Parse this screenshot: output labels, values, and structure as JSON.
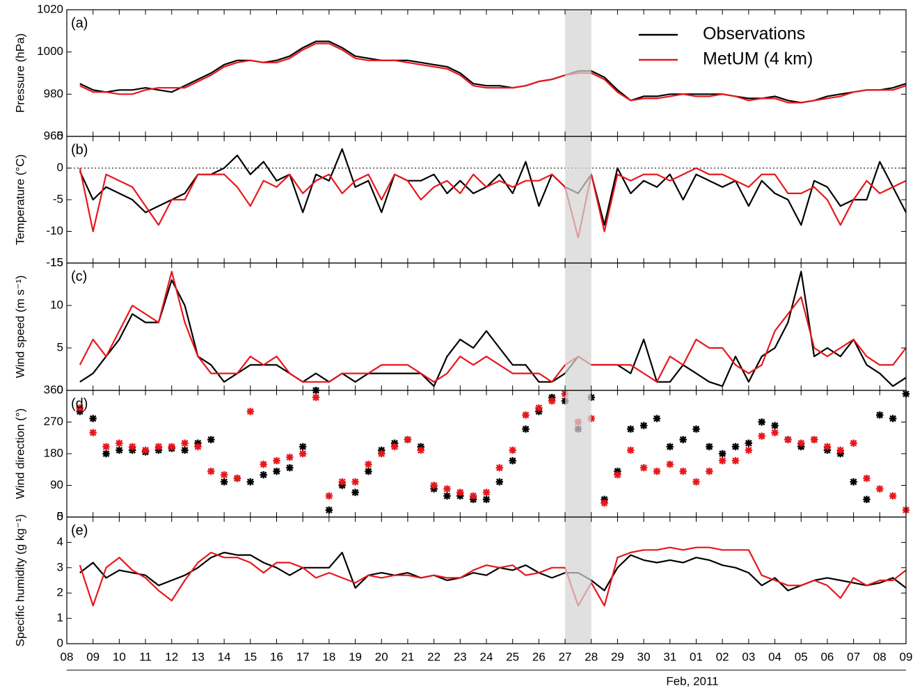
{
  "chart_data": [
    {
      "type": "line",
      "panel_label": "(a)",
      "ylabel": "Pressure (hPa)",
      "legend": "upper right",
      "shaded_span": [
        19,
        20
      ],
      "x": [
        0.5,
        1,
        1.5,
        2,
        2.5,
        3,
        3.5,
        4,
        4.5,
        5,
        5.5,
        6,
        6.5,
        7,
        7.5,
        8,
        8.5,
        9,
        9.5,
        10,
        10.5,
        11,
        11.5,
        12,
        12.5,
        13,
        13.5,
        14,
        14.5,
        15,
        15.5,
        16,
        16.5,
        17,
        17.5,
        18,
        18.5,
        19,
        19.5,
        20,
        20.5,
        21,
        21.5,
        22,
        22.5,
        23,
        23.5,
        24,
        24.5,
        25,
        25.5,
        26,
        26.5,
        27,
        27.5,
        28,
        28.5,
        29,
        29.5,
        30,
        30.5,
        31,
        31.5,
        32
      ],
      "xlim": [
        0,
        32
      ],
      "ylim": [
        960,
        1020
      ],
      "yticks": [
        960,
        980,
        1000,
        1020
      ],
      "series": [
        {
          "name": "Observations",
          "color": "#000000",
          "values": [
            985,
            982,
            981,
            982,
            982,
            983,
            982,
            981,
            984,
            987,
            990,
            994,
            996,
            996,
            995,
            996,
            998,
            1002,
            1005,
            1005,
            1002,
            998,
            997,
            996,
            996,
            996,
            995,
            994,
            993,
            990,
            985,
            984,
            984,
            983,
            984,
            986,
            987,
            989,
            991,
            991,
            988,
            982,
            977,
            979,
            979,
            980,
            980,
            980,
            980,
            980,
            979,
            978,
            978,
            979,
            977,
            976,
            977,
            979,
            980,
            981,
            982,
            982,
            983,
            985
          ]
        },
        {
          "name": "MetUM (4 km)",
          "color": "#e8161b",
          "values": [
            984,
            981,
            981,
            980,
            980,
            982,
            983,
            983,
            983,
            986,
            989,
            993,
            995,
            996,
            995,
            995,
            997,
            1001,
            1004,
            1004,
            1001,
            997,
            996,
            996,
            996,
            995,
            994,
            993,
            992,
            989,
            984,
            983,
            983,
            983,
            984,
            986,
            987,
            989,
            990,
            990,
            987,
            981,
            977,
            978,
            978,
            979,
            980,
            979,
            979,
            980,
            979,
            977,
            978,
            978,
            976,
            976,
            977,
            978,
            979,
            981,
            982,
            982,
            982,
            984
          ]
        }
      ]
    },
    {
      "type": "line",
      "panel_label": "(b)",
      "ylabel": "Temperature (°C)",
      "reference_line": 0,
      "x": [
        0.5,
        1,
        1.5,
        2,
        2.5,
        3,
        3.5,
        4,
        4.5,
        5,
        5.5,
        6,
        6.5,
        7,
        7.5,
        8,
        8.5,
        9,
        9.5,
        10,
        10.5,
        11,
        11.5,
        12,
        12.5,
        13,
        13.5,
        14,
        14.5,
        15,
        15.5,
        16,
        16.5,
        17,
        17.5,
        18,
        18.5,
        19,
        19.5,
        20,
        20.5,
        21,
        21.5,
        22,
        22.5,
        23,
        23.5,
        24,
        24.5,
        25,
        25.5,
        26,
        26.5,
        27,
        27.5,
        28,
        28.5,
        29,
        29.5,
        30,
        30.5,
        31,
        31.5,
        32
      ],
      "xlim": [
        0,
        32
      ],
      "ylim": [
        -15,
        5
      ],
      "yticks": [
        -15,
        -10,
        -5,
        0,
        5
      ],
      "series": [
        {
          "color": "#000000",
          "values": [
            -0.5,
            -5,
            -3,
            -4,
            -5,
            -7,
            -6,
            -5,
            -4,
            -1,
            -1,
            0,
            2,
            -1,
            1,
            -2,
            -1,
            -7,
            -1,
            -2,
            3,
            -3,
            -2,
            -7,
            -1,
            -2,
            -2,
            -1,
            -4,
            -2,
            -4,
            -3,
            -1,
            -4,
            1,
            -6,
            -1,
            -3,
            -4,
            -1,
            -9,
            0,
            -4,
            -2,
            -3,
            -1,
            -5,
            -1,
            -2,
            -3,
            -2,
            -6,
            -2,
            -4,
            -5,
            -9,
            -2,
            -3,
            -6,
            -5,
            -5,
            1,
            -3,
            -7
          ]
        },
        {
          "color": "#e8161b",
          "values": [
            0,
            -10,
            -1,
            -2,
            -3,
            -6,
            -9,
            -5,
            -5,
            -1,
            -1,
            -1,
            -3,
            -6,
            -2,
            -3,
            -1,
            -4,
            -2,
            -1,
            -4,
            -2,
            -1,
            -5,
            -1,
            -2,
            -5,
            -3,
            -2,
            -4,
            -1,
            -3,
            -2,
            -3,
            -2,
            -2,
            -1,
            -3,
            -11,
            -1,
            -10,
            -1,
            -2,
            -1,
            -1,
            -2,
            -1,
            0,
            -1,
            -1,
            -2,
            -3,
            -1,
            -1,
            -4,
            -4,
            -3,
            -5,
            -9,
            -5,
            -2,
            -4,
            -3,
            -2
          ]
        }
      ]
    },
    {
      "type": "line",
      "panel_label": "(c)",
      "ylabel": "Wind speed (m s⁻¹)",
      "x": [
        0.5,
        1,
        1.5,
        2,
        2.5,
        3,
        3.5,
        4,
        4.5,
        5,
        5.5,
        6,
        6.5,
        7,
        7.5,
        8,
        8.5,
        9,
        9.5,
        10,
        10.5,
        11,
        11.5,
        12,
        12.5,
        13,
        13.5,
        14,
        14.5,
        15,
        15.5,
        16,
        16.5,
        17,
        17.5,
        18,
        18.5,
        19,
        19.5,
        20,
        20.5,
        21,
        21.5,
        22,
        22.5,
        23,
        23.5,
        24,
        24.5,
        25,
        25.5,
        26,
        26.5,
        27,
        27.5,
        28,
        28.5,
        29,
        29.5,
        30,
        30.5,
        31,
        31.5,
        32
      ],
      "xlim": [
        0,
        32
      ],
      "ylim": [
        0,
        15
      ],
      "yticks": [
        0,
        5,
        10,
        15
      ],
      "series": [
        {
          "color": "#000000",
          "values": [
            1,
            2,
            4,
            6,
            9,
            8,
            8,
            13,
            10,
            4,
            3,
            1,
            2,
            3,
            3,
            3,
            2,
            1,
            2,
            1,
            2,
            1,
            2,
            2,
            2,
            2,
            2,
            0.5,
            4,
            6,
            5,
            7,
            5,
            3,
            3,
            1,
            1,
            2,
            4,
            3,
            3,
            3,
            2,
            6,
            1,
            1,
            3,
            2,
            1,
            0.5,
            4,
            1,
            4,
            5,
            8,
            14,
            4,
            5,
            4,
            6,
            3,
            2,
            0.5,
            1.5
          ]
        },
        {
          "color": "#e8161b",
          "values": [
            3,
            6,
            4,
            7,
            10,
            9,
            8,
            14,
            8,
            4,
            2,
            2,
            2,
            4,
            3,
            4,
            2,
            1,
            1,
            1,
            2,
            2,
            2,
            3,
            3,
            3,
            2,
            1,
            2,
            4,
            3,
            4,
            3,
            2,
            2,
            2,
            1,
            3,
            4,
            3,
            3,
            3,
            3,
            2,
            1,
            4,
            3,
            6,
            5,
            5,
            3,
            2,
            3,
            7,
            9,
            11,
            5,
            4,
            5,
            6,
            4,
            3,
            3,
            5
          ]
        }
      ]
    },
    {
      "type": "scatter",
      "panel_label": "(d)",
      "ylabel": "Wind direction (°)",
      "x": [
        0.5,
        1,
        1.5,
        2,
        2.5,
        3,
        3.5,
        4,
        4.5,
        5,
        5.5,
        6,
        6.5,
        7,
        7.5,
        8,
        8.5,
        9,
        9.5,
        10,
        10.5,
        11,
        11.5,
        12,
        12.5,
        13,
        13.5,
        14,
        14.5,
        15,
        15.5,
        16,
        16.5,
        17,
        17.5,
        18,
        18.5,
        19,
        19.5,
        20,
        20.5,
        21,
        21.5,
        22,
        22.5,
        23,
        23.5,
        24,
        24.5,
        25,
        25.5,
        26,
        26.5,
        27,
        27.5,
        28,
        28.5,
        29,
        29.5,
        30,
        30.5,
        31,
        31.5,
        32
      ],
      "xlim": [
        0,
        32
      ],
      "ylim": [
        0,
        360
      ],
      "yticks": [
        0,
        90,
        180,
        270,
        360
      ],
      "series": [
        {
          "color": "#000000",
          "values": [
            300,
            280,
            180,
            190,
            190,
            185,
            190,
            195,
            190,
            210,
            220,
            100,
            110,
            100,
            120,
            130,
            140,
            200,
            360,
            20,
            90,
            70,
            130,
            190,
            210,
            220,
            200,
            80,
            60,
            60,
            50,
            50,
            100,
            160,
            250,
            300,
            340,
            330,
            250,
            340,
            50,
            130,
            250,
            260,
            280,
            200,
            220,
            250,
            200,
            180,
            200,
            210,
            270,
            260,
            220,
            200,
            220,
            190,
            180,
            100,
            50,
            290,
            280,
            350
          ]
        },
        {
          "color": "#e8161b",
          "values": [
            310,
            240,
            200,
            210,
            200,
            190,
            200,
            200,
            210,
            200,
            130,
            120,
            110,
            300,
            150,
            160,
            170,
            180,
            340,
            60,
            100,
            100,
            150,
            180,
            200,
            220,
            190,
            90,
            80,
            70,
            60,
            70,
            140,
            190,
            290,
            310,
            330,
            350,
            270,
            280,
            40,
            120,
            190,
            140,
            130,
            150,
            130,
            100,
            130,
            160,
            160,
            190,
            230,
            240,
            220,
            210,
            220,
            200,
            190,
            210,
            110,
            80,
            60,
            20
          ]
        }
      ]
    },
    {
      "type": "line",
      "panel_label": "(e)",
      "ylabel": "Specific humidity (g kg⁻¹)",
      "annotation": "Feb, 2011",
      "x": [
        0.5,
        1,
        1.5,
        2,
        2.5,
        3,
        3.5,
        4,
        4.5,
        5,
        5.5,
        6,
        6.5,
        7,
        7.5,
        8,
        8.5,
        9,
        9.5,
        10,
        10.5,
        11,
        11.5,
        12,
        12.5,
        13,
        13.5,
        14,
        14.5,
        15,
        15.5,
        16,
        16.5,
        17,
        17.5,
        18,
        18.5,
        19,
        19.5,
        20,
        20.5,
        21,
        21.5,
        22,
        22.5,
        23,
        23.5,
        24,
        24.5,
        25,
        25.5,
        26,
        26.5,
        27,
        27.5,
        28,
        28.5,
        29,
        29.5,
        30,
        30.5,
        31,
        31.5,
        32
      ],
      "xlim": [
        0,
        32
      ],
      "ylim": [
        0,
        5
      ],
      "yticks": [
        0,
        1,
        2,
        3,
        4,
        5
      ],
      "xticks": [
        {
          "value": 0,
          "label": "08"
        },
        {
          "value": 1,
          "label": "09"
        },
        {
          "value": 2,
          "label": "10"
        },
        {
          "value": 3,
          "label": "11"
        },
        {
          "value": 4,
          "label": "12"
        },
        {
          "value": 5,
          "label": "13"
        },
        {
          "value": 6,
          "label": "14"
        },
        {
          "value": 7,
          "label": "15"
        },
        {
          "value": 8,
          "label": "16"
        },
        {
          "value": 9,
          "label": "17"
        },
        {
          "value": 10,
          "label": "18"
        },
        {
          "value": 11,
          "label": "19"
        },
        {
          "value": 12,
          "label": "20"
        },
        {
          "value": 13,
          "label": "21"
        },
        {
          "value": 14,
          "label": "22"
        },
        {
          "value": 15,
          "label": "23"
        },
        {
          "value": 16,
          "label": "24"
        },
        {
          "value": 17,
          "label": "25"
        },
        {
          "value": 18,
          "label": "26"
        },
        {
          "value": 19,
          "label": "27"
        },
        {
          "value": 20,
          "label": "28"
        },
        {
          "value": 21,
          "label": "29"
        },
        {
          "value": 22,
          "label": "30"
        },
        {
          "value": 23,
          "label": "31"
        },
        {
          "value": 24,
          "label": "01"
        },
        {
          "value": 25,
          "label": "02"
        },
        {
          "value": 26,
          "label": "03"
        },
        {
          "value": 27,
          "label": "04"
        },
        {
          "value": 28,
          "label": "05"
        },
        {
          "value": 29,
          "label": "06"
        },
        {
          "value": 30,
          "label": "07"
        },
        {
          "value": 31,
          "label": "08"
        },
        {
          "value": 32,
          "label": "09"
        }
      ],
      "series": [
        {
          "color": "#000000",
          "values": [
            2.8,
            3.2,
            2.6,
            2.9,
            2.8,
            2.7,
            2.3,
            2.5,
            2.7,
            3.0,
            3.4,
            3.6,
            3.5,
            3.5,
            3.2,
            3.0,
            2.7,
            3.0,
            3.0,
            3.0,
            3.6,
            2.2,
            2.7,
            2.8,
            2.7,
            2.8,
            2.6,
            2.7,
            2.5,
            2.6,
            2.8,
            2.7,
            3.0,
            2.9,
            3.1,
            2.8,
            2.6,
            2.8,
            2.8,
            2.5,
            2.1,
            3.0,
            3.5,
            3.3,
            3.2,
            3.3,
            3.2,
            3.4,
            3.3,
            3.1,
            3.0,
            2.8,
            2.3,
            2.6,
            2.1,
            2.3,
            2.5,
            2.6,
            2.5,
            2.4,
            2.3,
            2.4,
            2.6,
            2.2
          ]
        },
        {
          "color": "#e8161b",
          "values": [
            3.1,
            1.5,
            3.0,
            3.4,
            2.9,
            2.6,
            2.1,
            1.7,
            2.5,
            3.2,
            3.6,
            3.4,
            3.4,
            3.2,
            2.8,
            3.2,
            3.2,
            3.0,
            2.6,
            2.8,
            2.6,
            2.4,
            2.7,
            2.6,
            2.7,
            2.7,
            2.6,
            2.7,
            2.6,
            2.6,
            2.9,
            3.1,
            3.0,
            3.1,
            2.7,
            2.8,
            3.0,
            3.0,
            1.5,
            2.4,
            1.5,
            3.4,
            3.6,
            3.7,
            3.7,
            3.8,
            3.7,
            3.8,
            3.8,
            3.7,
            3.7,
            3.7,
            2.7,
            2.5,
            2.3,
            2.3,
            2.5,
            2.3,
            1.8,
            2.6,
            2.3,
            2.5,
            2.5,
            2.9
          ]
        }
      ]
    }
  ]
}
